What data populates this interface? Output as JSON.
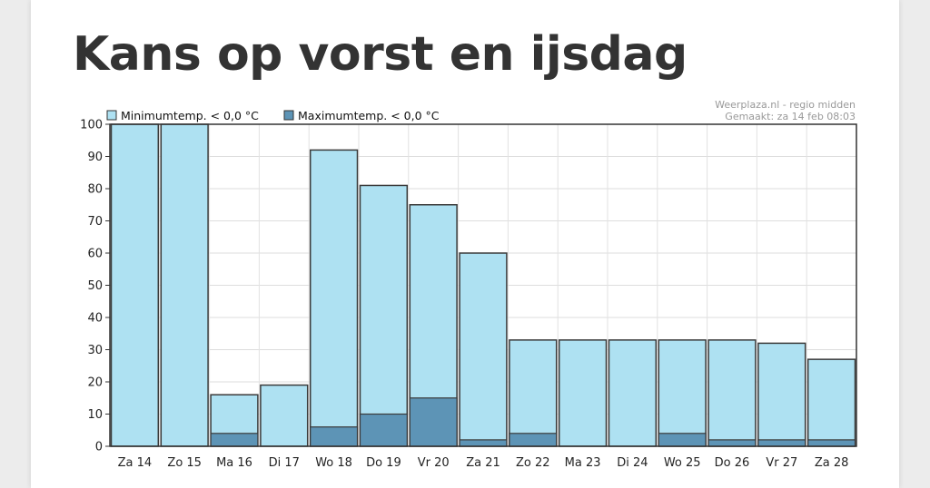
{
  "page": {
    "title": "Kans op vorst en ijsdag"
  },
  "chart_data": {
    "type": "bar",
    "categories": [
      "Za 14",
      "Zo 15",
      "Ma 16",
      "Di 17",
      "Wo 18",
      "Do 19",
      "Vr 20",
      "Za 21",
      "Zo 22",
      "Ma 23",
      "Di 24",
      "Wo 25",
      "Do 26",
      "Vr 27",
      "Za 28"
    ],
    "series": [
      {
        "name": "Minimumtemp. < 0,0 °C",
        "color": "#aee1f2",
        "values": [
          100,
          100,
          16,
          19,
          92,
          81,
          75,
          60,
          33,
          33,
          33,
          33,
          33,
          32,
          27
        ]
      },
      {
        "name": "Maximumtemp. < 0,0 °C",
        "color": "#5d94b6",
        "values": [
          0,
          0,
          4,
          0,
          6,
          10,
          15,
          2,
          4,
          0,
          0,
          4,
          2,
          2,
          2
        ]
      }
    ],
    "ylim": [
      0,
      100
    ],
    "yticks": [
      "0",
      "10",
      "20",
      "30",
      "40",
      "50",
      "60",
      "70",
      "80",
      "90",
      "100"
    ],
    "grid": true,
    "legend_position": "top-left",
    "credit_line1": "Weerplaza.nl - regio midden",
    "credit_line2": "Gemaakt: za 14 feb 08:03"
  }
}
